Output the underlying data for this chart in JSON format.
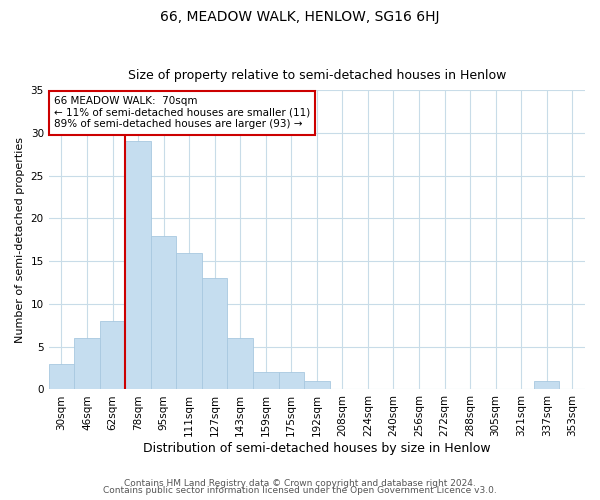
{
  "title": "66, MEADOW WALK, HENLOW, SG16 6HJ",
  "subtitle": "Size of property relative to semi-detached houses in Henlow",
  "xlabel": "Distribution of semi-detached houses by size in Henlow",
  "ylabel": "Number of semi-detached properties",
  "footer_line1": "Contains HM Land Registry data © Crown copyright and database right 2024.",
  "footer_line2": "Contains public sector information licensed under the Open Government Licence v3.0.",
  "bin_labels": [
    "30sqm",
    "46sqm",
    "62sqm",
    "78sqm",
    "95sqm",
    "111sqm",
    "127sqm",
    "143sqm",
    "159sqm",
    "175sqm",
    "192sqm",
    "208sqm",
    "224sqm",
    "240sqm",
    "256sqm",
    "272sqm",
    "288sqm",
    "305sqm",
    "321sqm",
    "337sqm",
    "353sqm"
  ],
  "bin_values": [
    3,
    6,
    8,
    29,
    18,
    16,
    13,
    6,
    2,
    2,
    1,
    0,
    0,
    0,
    0,
    0,
    0,
    0,
    0,
    1,
    0
  ],
  "bar_color": "#c5ddef",
  "bar_edge_color": "#a8c8e0",
  "vline_color": "#cc0000",
  "vline_x": 3.0,
  "ann_line1": "66 MEADOW WALK:  70sqm",
  "ann_line2": "← 11% of semi-detached houses are smaller (11)",
  "ann_line3": "89% of semi-detached houses are larger (93) →",
  "ylim": [
    0,
    35
  ],
  "yticks": [
    0,
    5,
    10,
    15,
    20,
    25,
    30,
    35
  ],
  "background_color": "#ffffff",
  "grid_color": "#c8dce8",
  "title_fontsize": 10,
  "subtitle_fontsize": 9,
  "ylabel_fontsize": 8,
  "xlabel_fontsize": 9,
  "tick_fontsize": 7.5,
  "footer_fontsize": 6.5
}
